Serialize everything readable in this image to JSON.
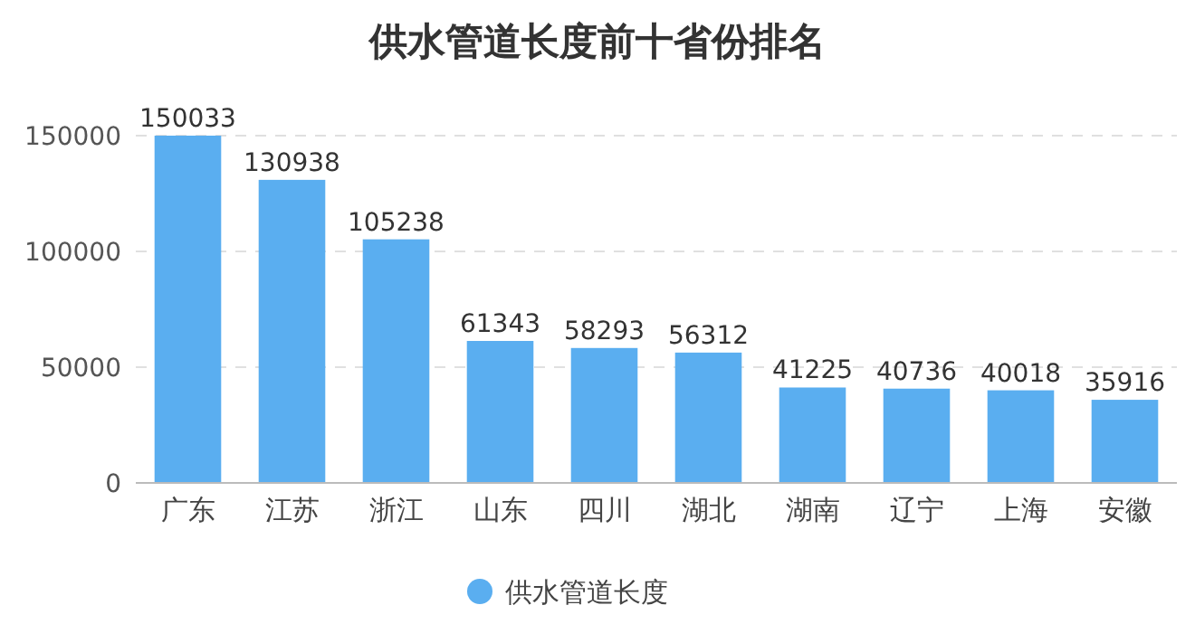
{
  "chart_data": {
    "type": "bar",
    "title": "供水管道长度前十省份排名",
    "categories": [
      "广东",
      "江苏",
      "浙江",
      "山东",
      "四川",
      "湖北",
      "湖南",
      "辽宁",
      "上海",
      "安徽"
    ],
    "series": [
      {
        "name": "供水管道长度",
        "color": "#5aaef0",
        "values": [
          150033,
          130938,
          105238,
          61343,
          58293,
          56312,
          41225,
          40736,
          40018,
          35916
        ]
      }
    ],
    "ylim": [
      0,
      150033
    ],
    "yticks": [
      0,
      50000,
      100000,
      150000
    ],
    "grid": "y",
    "legend": "bottom",
    "data_labels": true
  }
}
